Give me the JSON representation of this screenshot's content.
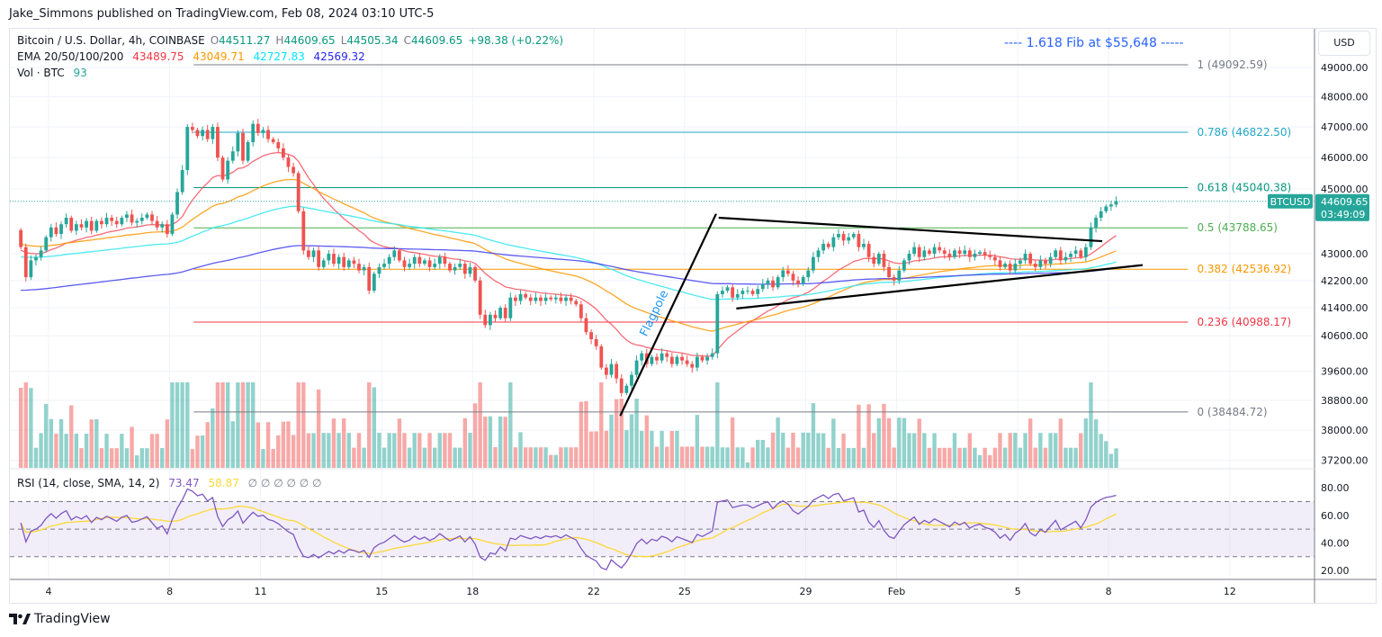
{
  "publisher": "Jake_Simmons published on TradingView.com, Feb 08, 2024 03:10 UTC-5",
  "legend": {
    "symbol": "Bitcoin / U.S. Dollar, 4h, COINBASE",
    "o_label": "O",
    "o": "44511.27",
    "h_label": "H",
    "h": "44609.65",
    "l_label": "L",
    "l": "44505.34",
    "c_label": "C",
    "c": "44609.65",
    "change": "+98.38 (+0.22%)",
    "ema_label": "EMA 20/50/100/200",
    "ema_values": [
      "43489.75",
      "43049.71",
      "42727.83",
      "42569.32"
    ],
    "vol_label": "Vol · BTC",
    "vol_value": "93",
    "rsi_label": "RSI (14, close, SMA, 14, 2)",
    "rsi_value": "73.47",
    "rsi_sma_value": "58.87",
    "rsi_extra": "∅ ∅ ∅ ∅ ∅ ∅"
  },
  "currency_button": "USD",
  "fib_note": "---- 1.618 Fib at $55,648 -----",
  "last_price": {
    "symbol": "BTCUSD",
    "price": "44609.65",
    "countdown": "03:49:09",
    "value": 44609.65
  },
  "footer": {
    "brand": "TradingView"
  },
  "colors": {
    "up": "#26a69a",
    "down": "#ef5350",
    "ema20": "#f7525f",
    "ema50": "#ff9800",
    "ema100": "#2ee6ee",
    "ema200": "#3f3ff0",
    "rsi": "#7e57c2",
    "rsi_sma": "#fdd835",
    "accent": "#2962ff"
  },
  "chart_data": {
    "type": "candlestick",
    "symbol": "BTCUSD",
    "interval": "4h",
    "y_scale": "log",
    "grid": true,
    "first_candle": "2024-01-03 00:00",
    "close_4h": [
      43200,
      42300,
      42800,
      42900,
      43100,
      43500,
      43800,
      43600,
      43900,
      44100,
      43700,
      43900,
      43800,
      44000,
      43700,
      44000,
      43900,
      44100,
      44000,
      43900,
      44100,
      44200,
      43950,
      44000,
      44100,
      44200,
      44000,
      43800,
      43900,
      43600,
      44200,
      44900,
      45600,
      47000,
      46900,
      46700,
      46900,
      46600,
      47000,
      46000,
      45300,
      45900,
      46200,
      46800,
      45900,
      46500,
      47100,
      46800,
      46900,
      46600,
      46500,
      46300,
      46000,
      45700,
      45500,
      44300,
      43100,
      42900,
      43100,
      42600,
      42800,
      43000,
      42700,
      42900,
      42600,
      42800,
      42700,
      42500,
      42600,
      41900,
      42400,
      42600,
      42700,
      42900,
      43100,
      42800,
      42600,
      42700,
      42900,
      42700,
      42800,
      42600,
      42700,
      42900,
      42700,
      42500,
      42600,
      42700,
      42400,
      42600,
      42200,
      41200,
      40900,
      41200,
      41100,
      41400,
      41100,
      41700,
      41600,
      41800,
      41700,
      41600,
      41700,
      41600,
      41700,
      41650,
      41700,
      41600,
      41700,
      41600,
      41500,
      41100,
      40700,
      40500,
      40300,
      39700,
      39500,
      39800,
      39400,
      39000,
      39200,
      39500,
      39900,
      40100,
      39800,
      40000,
      39900,
      40100,
      40000,
      39800,
      40000,
      39900,
      39800,
      39700,
      40000,
      39900,
      40000,
      40100,
      41800,
      41900,
      42000,
      41700,
      41800,
      41900,
      41900,
      41800,
      41950,
      42100,
      42200,
      42000,
      42300,
      42500,
      42400,
      42200,
      42100,
      42300,
      42500,
      42900,
      43100,
      43300,
      43200,
      43500,
      43600,
      43400,
      43500,
      43600,
      43200,
      43300,
      42900,
      42700,
      43000,
      42600,
      42300,
      42200,
      42500,
      42800,
      43000,
      43200,
      42900,
      43100,
      43000,
      43200,
      43100,
      43000,
      42900,
      43100,
      43000,
      43100,
      42900,
      43000,
      43050,
      42950,
      42900,
      42800,
      42600,
      42700,
      42500,
      42700,
      42800,
      43000,
      42700,
      42600,
      42800,
      42700,
      42900,
      43100,
      42800,
      42900,
      43000,
      43100,
      42900,
      43200,
      43800,
      44100,
      44300,
      44450,
      44510,
      44609.65
    ],
    "price_ticks": [
      "49000.00",
      "48000.00",
      "47000.00",
      "46000.00",
      "45000.00",
      "43000.00",
      "42200.00",
      "41400.00",
      "40600.00",
      "39600.00",
      "38800.00",
      "38000.00",
      "37200.00"
    ],
    "time_ticks": [
      {
        "label": "4",
        "date": "2024-01-04"
      },
      {
        "label": "8",
        "date": "2024-01-08"
      },
      {
        "label": "11",
        "date": "2024-01-11"
      },
      {
        "label": "15",
        "date": "2024-01-15"
      },
      {
        "label": "18",
        "date": "2024-01-18"
      },
      {
        "label": "22",
        "date": "2024-01-22"
      },
      {
        "label": "25",
        "date": "2024-01-25"
      },
      {
        "label": "29",
        "date": "2024-01-29"
      },
      {
        "label": "Feb",
        "date": "2024-02-01"
      },
      {
        "label": "5",
        "date": "2024-02-05"
      },
      {
        "label": "8",
        "date": "2024-02-08"
      },
      {
        "label": "12",
        "date": "2024-02-12"
      }
    ],
    "fib": {
      "start": "2024-01-08 19:00",
      "end": "2024-02-10 15:00",
      "levels": [
        {
          "ratio": 1,
          "price": 49092.59,
          "label": "1 (49092.59)",
          "color": "#787b86"
        },
        {
          "ratio": 0.786,
          "price": 46822.5,
          "label": "0.786 (46822.50)",
          "color": "#22a7c8"
        },
        {
          "ratio": 0.618,
          "price": 45040.38,
          "label": "0.618 (45040.38)",
          "color": "#089981"
        },
        {
          "ratio": 0.5,
          "price": 43788.65,
          "label": "0.5 (43788.65)",
          "color": "#4caf50"
        },
        {
          "ratio": 0.382,
          "price": 42536.92,
          "label": "0.382 (42536.92)",
          "color": "#ff9800"
        },
        {
          "ratio": 0.236,
          "price": 40988.17,
          "label": "0.236 (40988.17)",
          "color": "#f23645"
        },
        {
          "ratio": 0,
          "price": 38484.72,
          "label": "0 (38484.72)",
          "color": "#787b86"
        }
      ]
    },
    "drawings": {
      "flagpole": {
        "label": "Flagpole",
        "from": {
          "t": "2024-01-22 21:00",
          "p": 38380
        },
        "to": {
          "t": "2024-01-26 01:00",
          "p": 44220
        }
      },
      "pennant_upper": {
        "from": {
          "t": "2024-01-26 03:00",
          "p": 44100
        },
        "to": {
          "t": "2024-02-07 19:00",
          "p": 43380
        }
      },
      "pennant_lower": {
        "from": {
          "t": "2024-01-26 17:00",
          "p": 41380
        },
        "to": {
          "t": "2024-02-09 03:00",
          "p": 42660
        }
      }
    },
    "rsi": {
      "ticks": [
        "80.00",
        "60.00",
        "40.00",
        "20.00"
      ],
      "upper_band": 70,
      "middle_band": 50,
      "lower_band": 30
    }
  }
}
